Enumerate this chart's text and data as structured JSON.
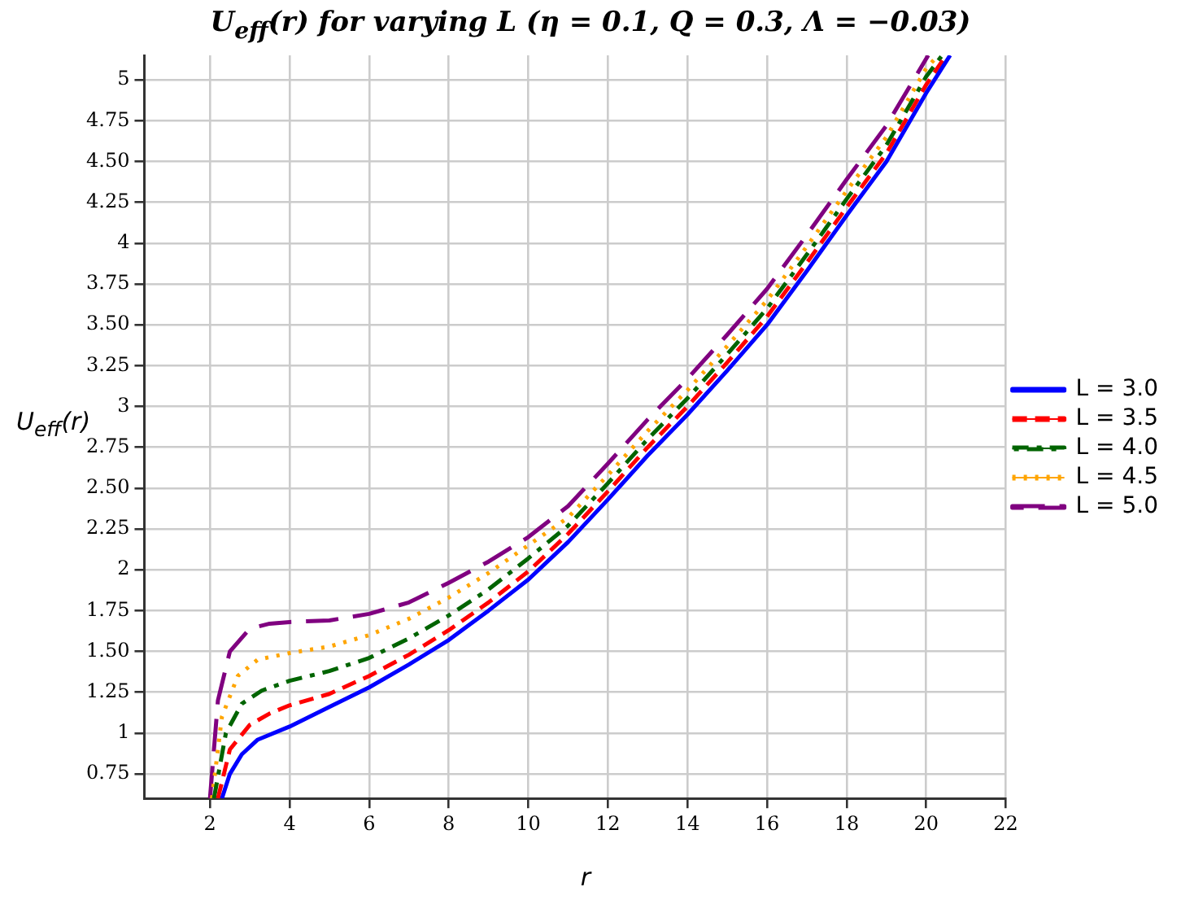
{
  "chart_data": {
    "type": "line",
    "title": "U$_{eff}$(r) for varying L (η = 0.1, Q = 0.3, Λ = −0.03)",
    "xlabel": "r",
    "ylabel": "U$_{eff}$(r)",
    "xlim": [
      0.35,
      22
    ],
    "xticks": [
      2,
      4,
      6,
      8,
      10,
      12,
      14,
      16,
      18,
      20,
      22
    ],
    "ylim": [
      0.6,
      5.15
    ],
    "yticks": [
      0.75,
      1,
      1.25,
      {
        "value": 1.5,
        "label": "1.50"
      },
      1.75,
      2,
      2.25,
      {
        "value": 2.5,
        "label": "2.50"
      },
      2.75,
      3,
      3.25,
      {
        "value": 3.5,
        "label": "3.50"
      },
      3.75,
      4,
      4.25,
      {
        "value": 4.5,
        "label": "4.50"
      },
      4.75,
      5
    ],
    "grid": true,
    "legend": "right",
    "marker": "none",
    "series": [
      {
        "name": "L = 3.0",
        "color": "#0000ff",
        "line_style": "solid",
        "x": [
          2.3,
          2.5,
          2.8,
          3.2,
          4,
          5,
          6,
          7,
          8,
          9,
          10,
          11,
          12,
          13,
          14,
          15,
          16,
          17,
          18,
          19,
          20,
          20.6
        ],
        "values": [
          0.6,
          0.75,
          0.87,
          0.96,
          1.04,
          1.16,
          1.28,
          1.42,
          1.57,
          1.75,
          1.94,
          2.17,
          2.43,
          2.7,
          2.95,
          3.22,
          3.5,
          3.83,
          4.17,
          4.5,
          4.92,
          5.15
        ]
      },
      {
        "name": "L = 3.5",
        "color": "#ff0000",
        "line_style": "dashed",
        "x": [
          2.2,
          2.5,
          3,
          3.5,
          4,
          5,
          6,
          7,
          8,
          9,
          10,
          11,
          12,
          13,
          14,
          15,
          16,
          17,
          18,
          19,
          20,
          20.5
        ],
        "values": [
          0.6,
          0.9,
          1.05,
          1.12,
          1.17,
          1.24,
          1.35,
          1.48,
          1.63,
          1.8,
          1.99,
          2.22,
          2.48,
          2.75,
          3.0,
          3.27,
          3.55,
          3.88,
          4.22,
          4.55,
          4.97,
          5.15
        ]
      },
      {
        "name": "L = 4.0",
        "color": "#006400",
        "line_style": "dashdot",
        "x": [
          2.1,
          2.4,
          2.8,
          3.3,
          4,
          5,
          6,
          7,
          8,
          9,
          10,
          11,
          12,
          13,
          14,
          15,
          16,
          17,
          18,
          19,
          20,
          20.4
        ],
        "values": [
          0.6,
          1.0,
          1.18,
          1.26,
          1.32,
          1.38,
          1.46,
          1.58,
          1.72,
          1.88,
          2.07,
          2.27,
          2.53,
          2.8,
          3.05,
          3.32,
          3.6,
          3.93,
          4.27,
          4.6,
          5.02,
          5.15
        ]
      },
      {
        "name": "L = 4.5",
        "color": "#ffa500",
        "line_style": "dotted",
        "x": [
          2.05,
          2.3,
          2.7,
          3.2,
          4,
          5,
          6,
          7,
          8,
          9,
          10,
          11,
          12,
          13,
          14,
          15,
          16,
          17,
          18,
          19,
          20,
          20.3
        ],
        "values": [
          0.6,
          1.1,
          1.35,
          1.45,
          1.49,
          1.53,
          1.6,
          1.7,
          1.83,
          1.98,
          2.15,
          2.32,
          2.58,
          2.85,
          3.1,
          3.37,
          3.65,
          3.98,
          4.32,
          4.65,
          5.07,
          5.15
        ]
      },
      {
        "name": "L = 5.0",
        "color": "#800080",
        "line_style": "longdash",
        "x": [
          2.0,
          2.2,
          2.5,
          3,
          3.5,
          4,
          5,
          6,
          7,
          8,
          9,
          10,
          11,
          12,
          13,
          14,
          15,
          16,
          17,
          18,
          19,
          20.05
        ],
        "values": [
          0.6,
          1.2,
          1.5,
          1.64,
          1.67,
          1.68,
          1.69,
          1.73,
          1.8,
          1.92,
          2.05,
          2.2,
          2.39,
          2.65,
          2.92,
          3.17,
          3.44,
          3.72,
          4.05,
          4.39,
          4.72,
          5.15
        ]
      }
    ]
  }
}
